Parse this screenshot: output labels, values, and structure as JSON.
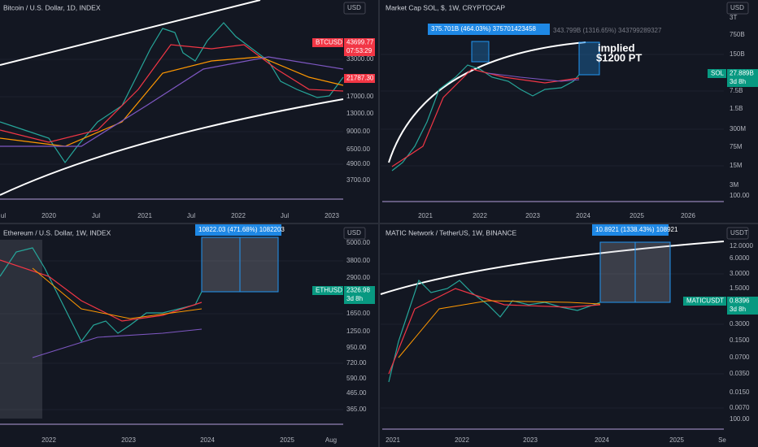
{
  "panels": [
    {
      "title": "Bitcoin / U.S. Dollar, 1D, INDEX",
      "currency": "USD",
      "price_labels": [
        "33000.00",
        "17000.00",
        "13000.00",
        "9000.00",
        "6500.00",
        "4900.00",
        "3700.00"
      ],
      "time_labels": [
        "ul",
        "2020",
        "Jul",
        "2021",
        "Jul",
        "2022",
        "Jul",
        "2023"
      ],
      "tags": [
        {
          "symbol": "BTCUSD",
          "price": "43699.77",
          "sub": "07:53:29"
        },
        {
          "price": "21787.30"
        }
      ],
      "annotations": []
    },
    {
      "title": "Market Cap SOL, $, 1W, CRYPTOCAP",
      "currency": "USD",
      "price_labels": [
        "3T",
        "750B",
        "150B",
        "7.5B",
        "1.5B",
        "300M",
        "75M",
        "15M",
        "3M",
        "100.00"
      ],
      "time_labels": [
        "2021",
        "2022",
        "2023",
        "2024",
        "2025",
        "2026"
      ],
      "tags": [
        {
          "symbol": "SOL",
          "price": "27.889B",
          "sub": "3d 8h"
        }
      ],
      "annotations": [
        "375.701B (464.03%) 375701423458",
        "343.799B (1316.65%) 343799289327",
        "implied",
        "$1200 PT"
      ]
    },
    {
      "title": "Ethereum / U.S. Dollar, 1W, INDEX",
      "currency": "USD",
      "price_labels": [
        "5000.00",
        "3800.00",
        "2900.00",
        "1650.00",
        "1250.00",
        "950.00",
        "720.00",
        "590.00",
        "465.00",
        "365.00"
      ],
      "time_labels": [
        "2022",
        "2023",
        "2024",
        "2025",
        "Aug"
      ],
      "tags": [
        {
          "symbol": "ETHUSD",
          "price": "2326.98",
          "sub": "3d 8h"
        }
      ],
      "annotations": [
        "10822.03 (471.68%) 1082203"
      ]
    },
    {
      "title": "MATIC Network / TetherUS, 1W, BINANCE",
      "currency": "USDT",
      "price_labels": [
        "12.0000",
        "6.0000",
        "3.0000",
        "1.5000",
        "0.3000",
        "0.1500",
        "0.0700",
        "0.0350",
        "0.0150",
        "0.0070",
        "100.00"
      ],
      "time_labels": [
        "2021",
        "2022",
        "2023",
        "2024",
        "2025",
        "Se"
      ],
      "tags": [
        {
          "symbol": "MATICUSDT",
          "price": "0.8396",
          "sub": "3d 8h"
        }
      ],
      "annotations": [
        "10.8921 (1338.43%) 108921"
      ]
    }
  ]
}
